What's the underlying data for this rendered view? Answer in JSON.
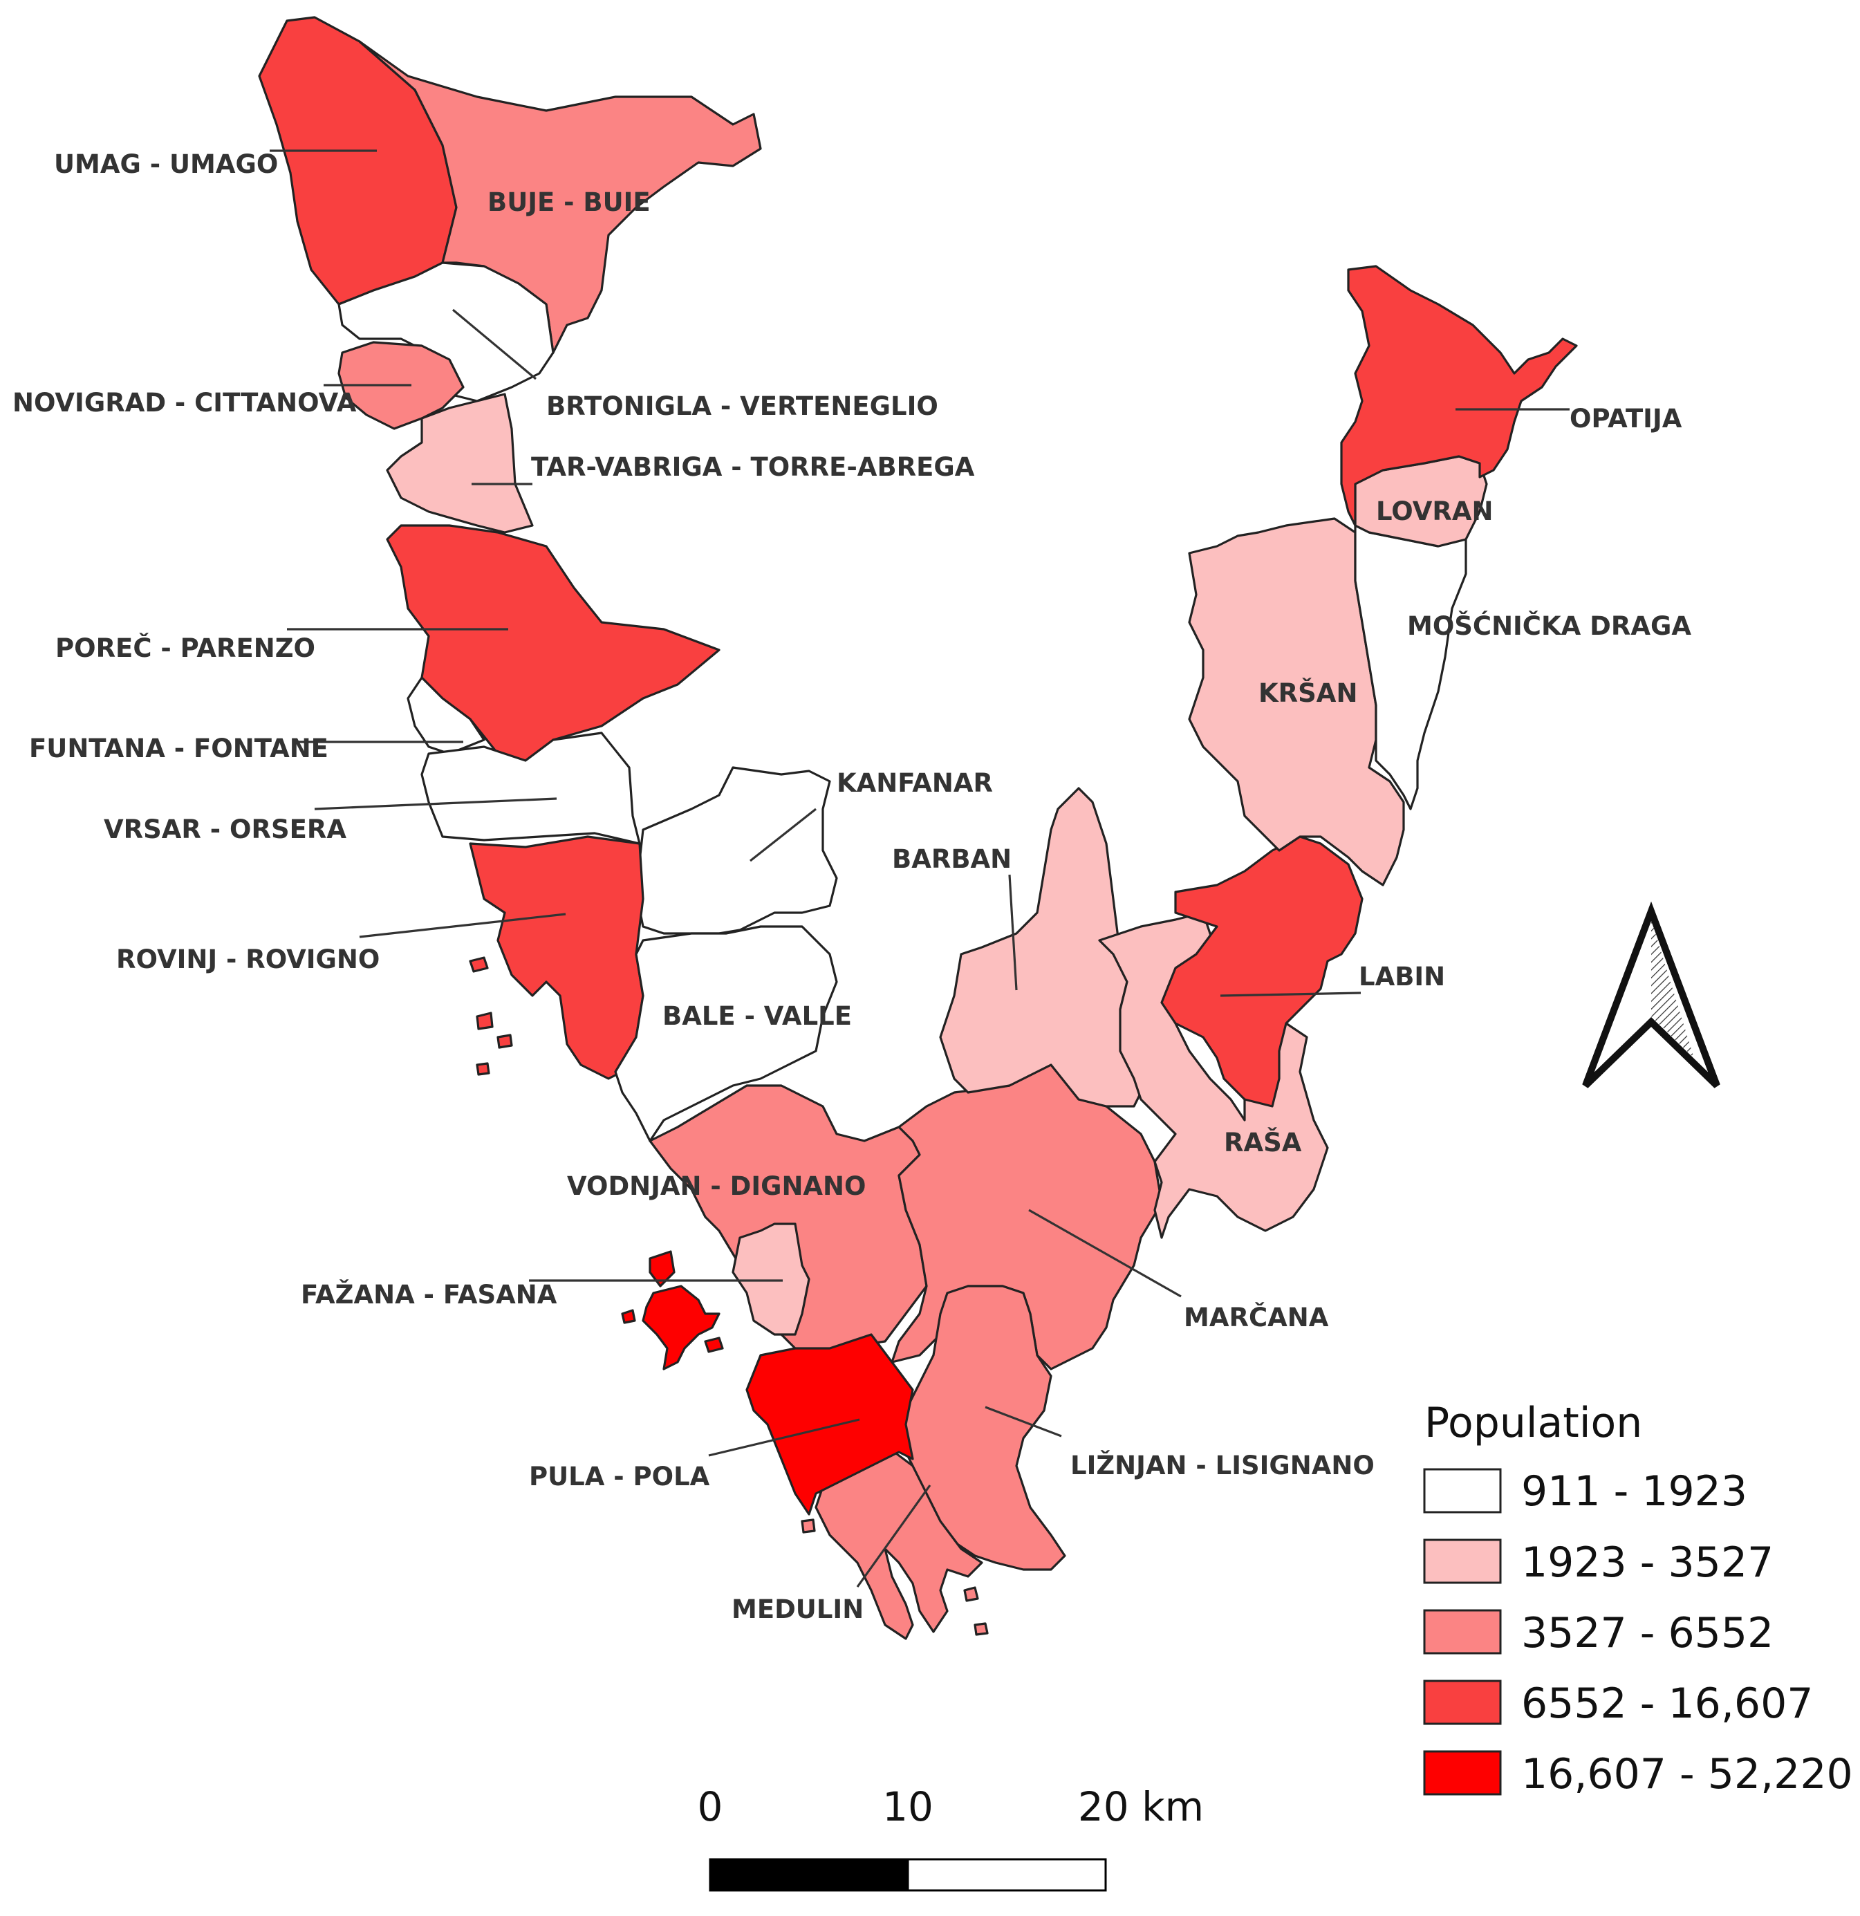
{
  "map": {
    "legend": {
      "title": "Population",
      "classes": [
        {
          "label": "911 - 1923",
          "color": "#ffffff"
        },
        {
          "label": "1923 - 3527",
          "color": "#fcbfbf"
        },
        {
          "label": "3527 - 6552",
          "color": "#fb8484"
        },
        {
          "label": "6552 - 16,607",
          "color": "#f94040"
        },
        {
          "label": "16,607 - 52,220",
          "color": "#fe0000"
        }
      ]
    },
    "scale_bar": {
      "labels": [
        "0",
        "10",
        "20 km"
      ]
    },
    "north_arrow": {
      "icon": "north-arrow-icon"
    },
    "regions": [
      {
        "id": "umag",
        "label": "UMAG - UMAGO",
        "class": 3
      },
      {
        "id": "buje",
        "label": "BUJE - BUIE",
        "class": 2
      },
      {
        "id": "brtonigla",
        "label": "BRTONIGLA - VERTENEGLIO",
        "class": 0
      },
      {
        "id": "novigrad",
        "label": "NOVIGRAD - CITTANOVA",
        "class": 2
      },
      {
        "id": "tar",
        "label": "TAR-VABRIGA - TORRE-ABREGA",
        "class": 1
      },
      {
        "id": "porec",
        "label": "POREČ - PARENZO",
        "class": 3
      },
      {
        "id": "funtana",
        "label": "FUNTANA - FONTANE",
        "class": 0
      },
      {
        "id": "vrsar",
        "label": "VRSAR - ORSERA",
        "class": 0
      },
      {
        "id": "kanfanar",
        "label": "KANFANAR",
        "class": 0
      },
      {
        "id": "rovinj",
        "label": "ROVINJ - ROVIGNO",
        "class": 3
      },
      {
        "id": "bale",
        "label": "BALE - VALLE",
        "class": 0
      },
      {
        "id": "vodnjan",
        "label": "VODNJAN - DIGNANO",
        "class": 2
      },
      {
        "id": "fazana",
        "label": "FAŽANA - FASANA",
        "class": 1
      },
      {
        "id": "pula",
        "label": "PULA - POLA",
        "class": 4
      },
      {
        "id": "medulin",
        "label": "MEDULIN",
        "class": 2
      },
      {
        "id": "liznjan",
        "label": "LIŽNJAN - LISIGNANO",
        "class": 2
      },
      {
        "id": "marcana",
        "label": "MARČANA",
        "class": 2
      },
      {
        "id": "barban",
        "label": "BARBAN",
        "class": 1
      },
      {
        "id": "rasa",
        "label": "RAŠA",
        "class": 1
      },
      {
        "id": "labin",
        "label": "LABIN",
        "class": 3
      },
      {
        "id": "krsan",
        "label": "KRŠAN",
        "class": 1
      },
      {
        "id": "moscenicka",
        "label": "MOŠĆNIČKA DRAGA",
        "class": 0
      },
      {
        "id": "lovran",
        "label": "LOVRAN",
        "class": 1
      },
      {
        "id": "opatija",
        "label": "OPATIJA",
        "class": 3
      }
    ]
  }
}
